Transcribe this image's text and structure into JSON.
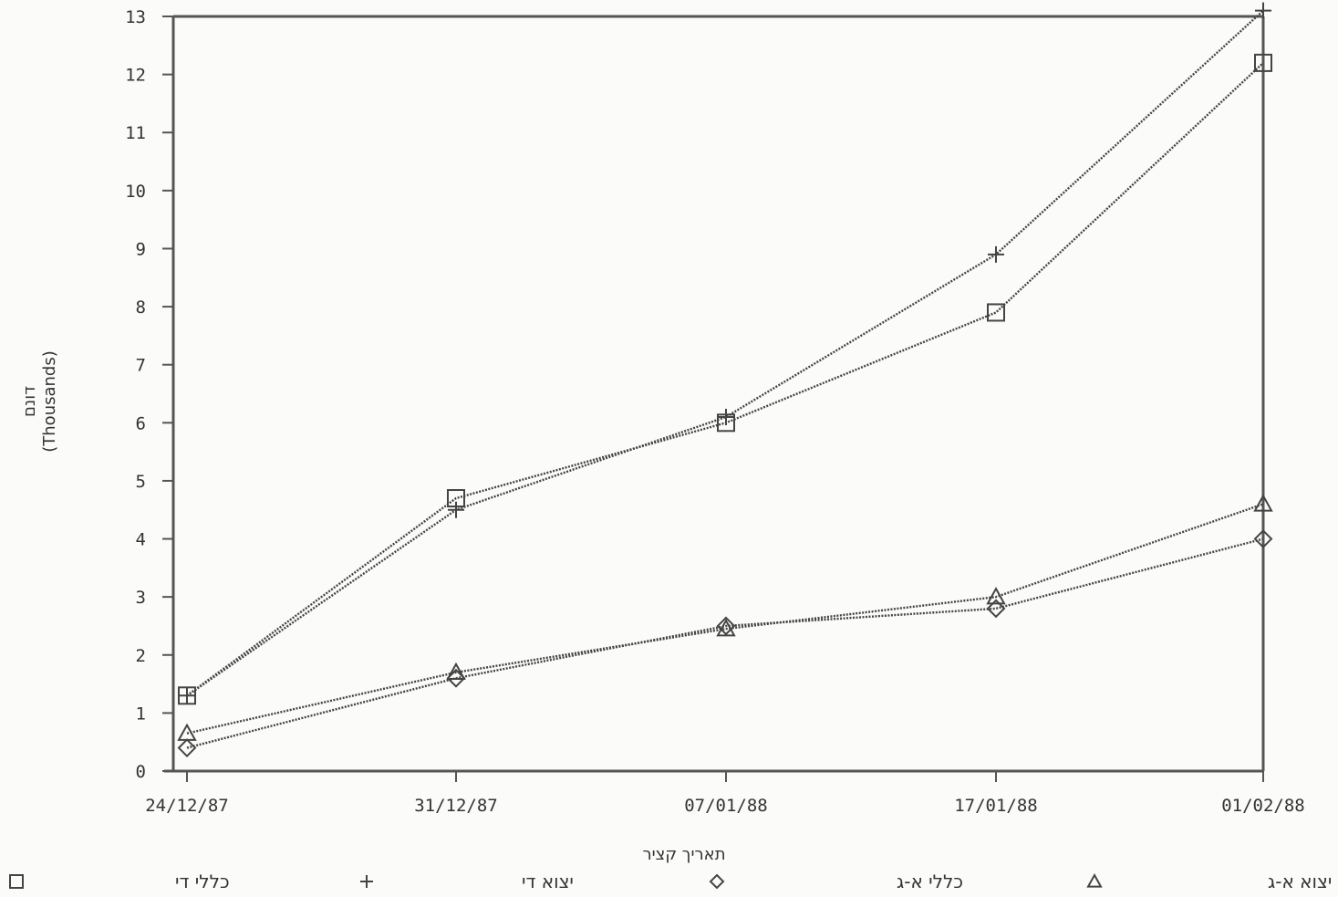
{
  "chart_data": {
    "type": "line",
    "title": "",
    "xlabel": "תאריך קציר",
    "ylabel": "דונם",
    "ylabel_unit": "(Thousands)",
    "ylim": [
      0,
      13
    ],
    "y_ticks": [
      "0",
      "1",
      "2",
      "3",
      "4",
      "5",
      "6",
      "7",
      "8",
      "9",
      "10",
      "11",
      "12",
      "13"
    ],
    "categories": [
      "24/12/87",
      "31/12/87",
      "07/01/88",
      "17/01/88",
      "01/02/88"
    ],
    "series": [
      {
        "name": "כללי די",
        "marker": "square",
        "values": [
          1.3,
          4.7,
          6.0,
          7.9,
          12.2
        ]
      },
      {
        "name": "יצוא די",
        "marker": "plus",
        "values": [
          1.3,
          4.5,
          6.1,
          8.9,
          13.1
        ]
      },
      {
        "name": "כללי א-ג",
        "marker": "diamond",
        "values": [
          0.4,
          1.6,
          2.5,
          2.8,
          4.0
        ]
      },
      {
        "name": "יצוא א-ג",
        "marker": "triangle",
        "values": [
          0.65,
          1.7,
          2.45,
          3.0,
          4.6
        ]
      }
    ],
    "grid": false,
    "legend_position": "bottom",
    "colors": {
      "line": "#444444",
      "axis": "#555555",
      "background": "#fbfbf9"
    }
  }
}
